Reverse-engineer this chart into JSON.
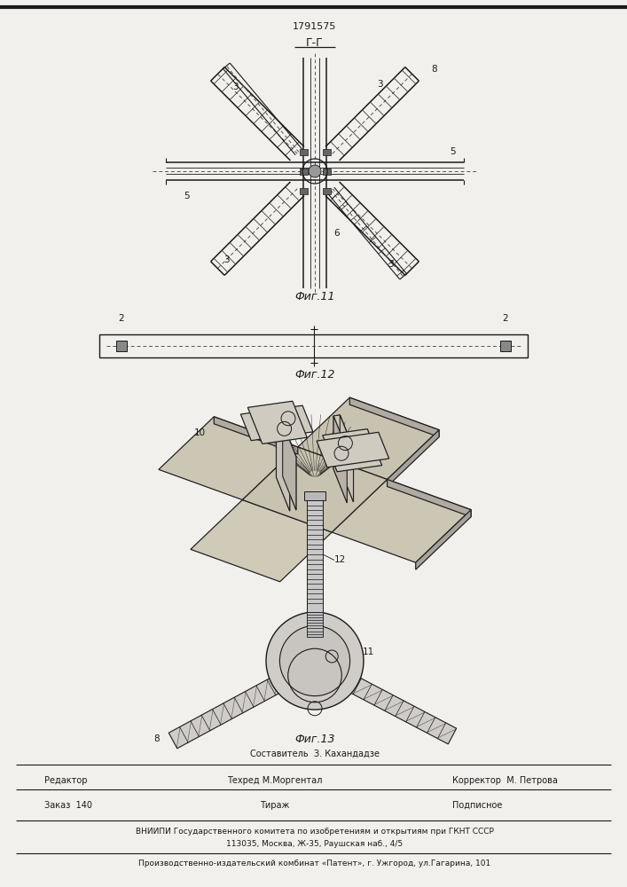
{
  "patent_number": "1791575",
  "section_label": "Г-Г",
  "caption11": "Фиг.11",
  "caption12": "Фиг.12",
  "caption13": "Фиг.13",
  "footer_line1": "Составитель  З. Кахандадзе",
  "footer_line2_left": "Редактор",
  "footer_line2_mid": "Техред М.Моргентал",
  "footer_line2_right": "Корректор  М. Петрова",
  "footer_line3_left": "Заказ  140",
  "footer_line3_mid": "Тираж",
  "footer_line3_right": "Подписное",
  "footer_line4": "ВНИИПИ Государственного комитета по изобретениям и открытиям при ГКНТ СССР",
  "footer_line5": "113035, Москва, Ж-35, Раушская наб., 4/5",
  "footer_line6": "Производственно-издательский комбинат «Патент», г. Ужгород, ул.Гагарина, 101",
  "bg_color": "#f2f0ec",
  "line_color": "#1a1a1a"
}
